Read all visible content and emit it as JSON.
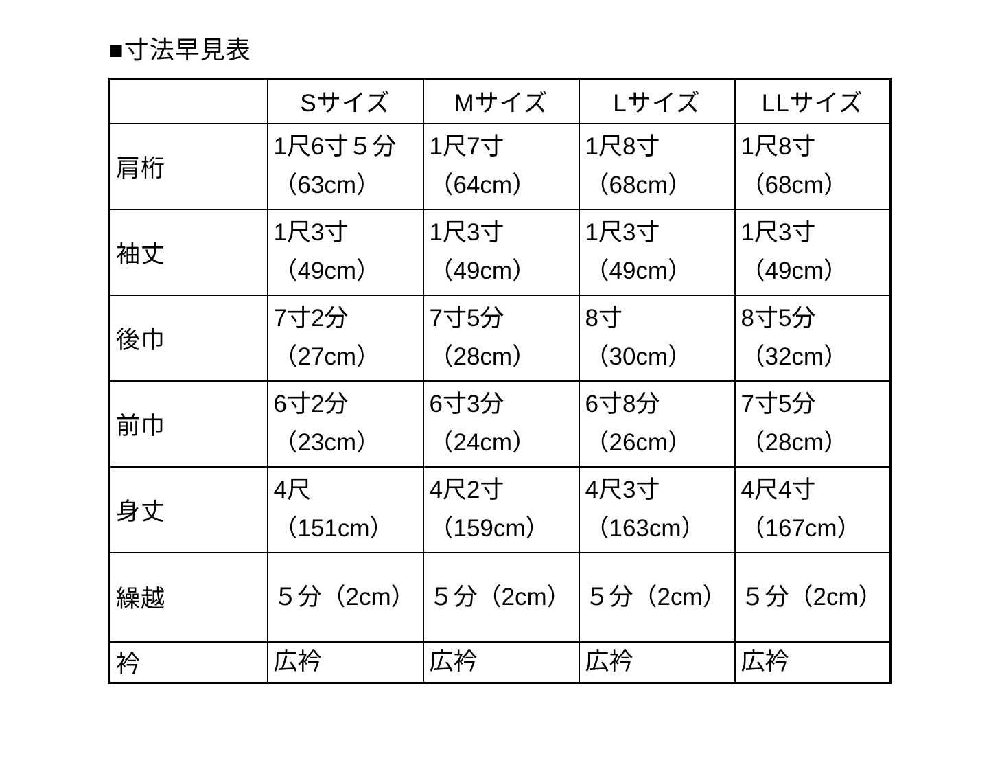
{
  "title": "■寸法早見表",
  "table": {
    "corner": "",
    "columns": [
      "Sサイズ",
      "Mサイズ",
      "Lサイズ",
      "LLサイズ"
    ],
    "rows": [
      {
        "label": "肩桁",
        "values": [
          [
            "1尺6寸５分",
            "（63cm）"
          ],
          [
            "1尺7寸",
            "（64cm）"
          ],
          [
            "1尺8寸",
            "（68cm）"
          ],
          [
            "1尺8寸",
            "（68cm）"
          ]
        ]
      },
      {
        "label": "袖丈",
        "values": [
          [
            "1尺3寸",
            "（49cm）"
          ],
          [
            "1尺3寸",
            "（49cm）"
          ],
          [
            "1尺3寸",
            "（49cm）"
          ],
          [
            "1尺3寸",
            "（49cm）"
          ]
        ]
      },
      {
        "label": "後巾",
        "values": [
          [
            "7寸2分",
            "（27cm）"
          ],
          [
            "7寸5分",
            "（28cm）"
          ],
          [
            "8寸",
            "（30cm）"
          ],
          [
            "8寸5分",
            "（32cm）"
          ]
        ]
      },
      {
        "label": "前巾",
        "values": [
          [
            "6寸2分",
            "（23cm）"
          ],
          [
            "6寸3分",
            "（24cm）"
          ],
          [
            "6寸8分",
            "（26cm）"
          ],
          [
            "7寸5分",
            "（28cm）"
          ]
        ]
      },
      {
        "label": "身丈",
        "values": [
          [
            "4尺",
            "（151cm）"
          ],
          [
            "4尺2寸",
            "（159cm）"
          ],
          [
            "4尺3寸",
            "（163cm）"
          ],
          [
            "4尺4寸",
            "（167cm）"
          ]
        ]
      },
      {
        "label": "繰越",
        "values": [
          [
            "５分（2cm）"
          ],
          [
            "５分（2cm）"
          ],
          [
            "５分（2cm）"
          ],
          [
            "５分（2cm）"
          ]
        ]
      },
      {
        "label": "衿",
        "values": [
          [
            "広衿"
          ],
          [
            "広衿"
          ],
          [
            "広衿"
          ],
          [
            "広衿"
          ]
        ]
      }
    ]
  },
  "colors": {
    "border": "#000000",
    "background": "#ffffff",
    "text": "#000000"
  }
}
